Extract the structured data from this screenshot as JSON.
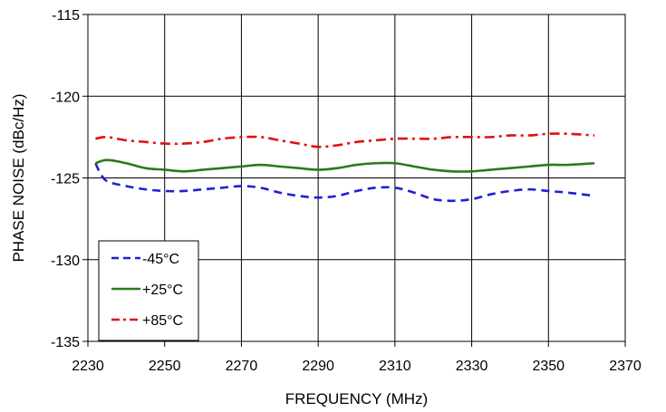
{
  "chart_data": {
    "type": "line",
    "xlabel": "FREQUENCY (MHz)",
    "ylabel": "PHASE NOISE  (dBc/Hz)",
    "xlim": [
      2230,
      2370
    ],
    "ylim": [
      -135,
      -115
    ],
    "xticks": [
      2230,
      2250,
      2270,
      2290,
      2310,
      2330,
      2350,
      2370
    ],
    "yticks": [
      -115,
      -120,
      -125,
      -130,
      -135
    ],
    "grid": true,
    "legend_position": "bottom-left",
    "series": [
      {
        "name": "-45°C",
        "color": "#1f1fd6",
        "dash": "dashed",
        "x": [
          2232,
          2233,
          2235,
          2240,
          2245,
          2250,
          2255,
          2260,
          2265,
          2270,
          2275,
          2280,
          2285,
          2290,
          2295,
          2300,
          2305,
          2310,
          2315,
          2320,
          2325,
          2330,
          2335,
          2340,
          2345,
          2350,
          2355,
          2362
        ],
        "y": [
          -124.1,
          -124.6,
          -125.2,
          -125.5,
          -125.7,
          -125.8,
          -125.8,
          -125.7,
          -125.6,
          -125.5,
          -125.6,
          -125.9,
          -126.1,
          -126.2,
          -126.1,
          -125.8,
          -125.6,
          -125.6,
          -125.9,
          -126.3,
          -126.4,
          -126.3,
          -126.0,
          -125.8,
          -125.7,
          -125.8,
          -125.9,
          -126.1
        ]
      },
      {
        "name": "+25°C",
        "color": "#2a7a1a",
        "dash": "solid",
        "x": [
          2232,
          2235,
          2240,
          2245,
          2250,
          2255,
          2260,
          2265,
          2270,
          2275,
          2280,
          2285,
          2290,
          2295,
          2300,
          2305,
          2310,
          2315,
          2320,
          2325,
          2330,
          2335,
          2340,
          2345,
          2350,
          2355,
          2362
        ],
        "y": [
          -124.1,
          -123.9,
          -124.1,
          -124.4,
          -124.5,
          -124.6,
          -124.5,
          -124.4,
          -124.3,
          -124.2,
          -124.3,
          -124.4,
          -124.5,
          -124.4,
          -124.2,
          -124.1,
          -124.1,
          -124.3,
          -124.5,
          -124.6,
          -124.6,
          -124.5,
          -124.4,
          -124.3,
          -124.2,
          -124.2,
          -124.1
        ]
      },
      {
        "name": "+85°C",
        "color": "#e01010",
        "dash": "dash-dot",
        "x": [
          2232,
          2235,
          2240,
          2245,
          2250,
          2255,
          2260,
          2265,
          2270,
          2275,
          2280,
          2285,
          2290,
          2295,
          2300,
          2305,
          2310,
          2315,
          2320,
          2325,
          2330,
          2335,
          2340,
          2345,
          2350,
          2355,
          2362
        ],
        "y": [
          -122.6,
          -122.5,
          -122.7,
          -122.8,
          -122.9,
          -122.9,
          -122.8,
          -122.6,
          -122.5,
          -122.5,
          -122.7,
          -122.9,
          -123.1,
          -123.0,
          -122.8,
          -122.7,
          -122.6,
          -122.6,
          -122.6,
          -122.5,
          -122.5,
          -122.5,
          -122.4,
          -122.4,
          -122.3,
          -122.3,
          -122.4
        ]
      }
    ]
  }
}
